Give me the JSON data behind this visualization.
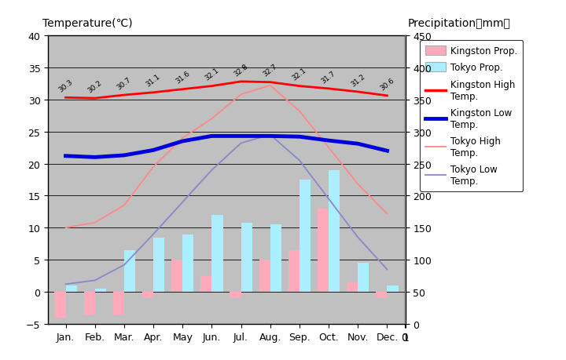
{
  "months": [
    "Jan.",
    "Feb.",
    "Mar.",
    "Apr.",
    "May",
    "Jun.",
    "Jul.",
    "Aug.",
    "Sep.",
    "Oct.",
    "Nov.",
    "Dec."
  ],
  "kingston_high": [
    30.3,
    30.2,
    30.7,
    31.1,
    31.6,
    32.1,
    32.8,
    32.7,
    32.1,
    31.7,
    31.2,
    30.6
  ],
  "kingston_low": [
    21.2,
    21.0,
    21.3,
    22.1,
    23.5,
    24.3,
    24.3,
    24.3,
    24.2,
    23.6,
    23.1,
    22.0
  ],
  "tokyo_high": [
    10.0,
    10.8,
    13.5,
    19.5,
    24.0,
    27.0,
    30.8,
    32.2,
    28.2,
    22.5,
    16.8,
    12.2
  ],
  "tokyo_low": [
    1.2,
    1.8,
    4.2,
    9.0,
    14.0,
    19.0,
    23.2,
    24.5,
    20.5,
    14.5,
    8.5,
    3.5
  ],
  "kingston_precip_bar": [
    -4.0,
    -3.5,
    -3.5,
    -1.0,
    5.0,
    2.5,
    -1.0,
    5.0,
    6.5,
    13.0,
    1.5,
    -1.0
  ],
  "tokyo_precip_bar": [
    1.0,
    0.5,
    6.5,
    8.5,
    9.0,
    12.0,
    10.8,
    10.5,
    17.5,
    19.0,
    4.5,
    1.0
  ],
  "kingston_high_labels": [
    "30.3",
    "30.2",
    "30.7",
    "31.1",
    "31.6",
    "32.1",
    "32.8",
    "32.7",
    "32.1",
    "31.7",
    "31.2",
    "30.6"
  ],
  "background_color": "#c0c0c0",
  "label_top_left": "Temperature(℃)",
  "label_top_right": "Precipitation（mm）",
  "ylim_temp": [
    -5,
    40
  ],
  "ylim_precip": [
    0,
    450
  ],
  "kingston_high_color": "#ff0000",
  "kingston_low_color": "#0000dd",
  "tokyo_high_color": "#ff8888",
  "tokyo_low_color": "#8888cc",
  "kingston_precip_color": "#ffaabb",
  "tokyo_precip_color": "#aaeeff",
  "bar_width": 0.38
}
